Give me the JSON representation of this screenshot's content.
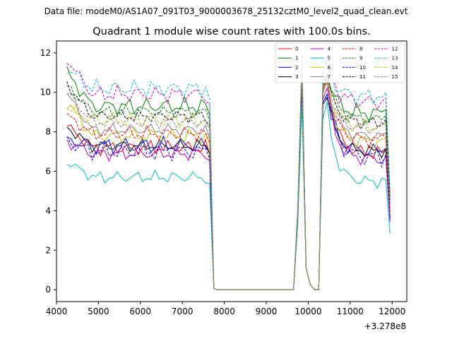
{
  "figure": {
    "suptitle": "Data file: modeM0/AS1A07_091T03_9000003678_25132cztM0_level2_quad_clean.evt"
  },
  "chart_data": {
    "type": "line",
    "title": "Quadrant 1 module wise count rates with 100.0s bins.",
    "xlabel": "",
    "ylabel": "",
    "offset_label": "+3.278e8",
    "xlim": [
      4000,
      12350
    ],
    "ylim": [
      -0.6,
      12.6
    ],
    "xticks": [
      4000,
      5000,
      6000,
      7000,
      8000,
      9000,
      10000,
      11000,
      12000
    ],
    "yticks": [
      0,
      2,
      4,
      6,
      8,
      10,
      12
    ],
    "xtick_labels": [
      "4000",
      "5000",
      "6000",
      "7000",
      "8000",
      "9000",
      "10000",
      "11000",
      "12000"
    ],
    "ytick_labels": [
      "0",
      "2",
      "4",
      "6",
      "8",
      "10",
      "12"
    ],
    "legend_position": "top-right",
    "x": [
      4250,
      4350,
      4450,
      4550,
      4650,
      4750,
      4850,
      4950,
      5050,
      5150,
      5250,
      5350,
      5450,
      5550,
      5650,
      5750,
      5850,
      5950,
      6050,
      6150,
      6250,
      6350,
      6450,
      6550,
      6650,
      6750,
      6850,
      6950,
      7050,
      7150,
      7250,
      7350,
      7450,
      7550,
      7650,
      7750,
      7850,
      7950,
      8050,
      8150,
      8250,
      8350,
      8450,
      8550,
      8650,
      8750,
      8850,
      8950,
      9050,
      9150,
      9250,
      9350,
      9450,
      9550,
      9650,
      9750,
      9850,
      9950,
      10050,
      10150,
      10250,
      10350,
      10450,
      10550,
      10650,
      10750,
      10850,
      10950,
      11050,
      11150,
      11250,
      11350,
      11450,
      11550,
      11650,
      11750,
      11850,
      11950
    ],
    "series": [
      {
        "name": "0",
        "color": "#ff0000",
        "dash": "solid",
        "base": 7.2,
        "start": 8.3,
        "peak": 11.1,
        "amp": 0.35
      },
      {
        "name": "1",
        "color": "#008000",
        "dash": "solid",
        "base": 9.3,
        "start": 11.0,
        "peak": 11.5,
        "amp": 0.4
      },
      {
        "name": "2",
        "color": "#0000ff",
        "dash": "solid",
        "base": 7.3,
        "start": 7.6,
        "peak": 10.3,
        "amp": 0.4
      },
      {
        "name": "3",
        "color": "#000000",
        "dash": "solid",
        "base": 7.3,
        "start": 8.2,
        "peak": 10.2,
        "amp": 0.3
      },
      {
        "name": "4",
        "color": "#bf00bf",
        "dash": "solid",
        "base": 6.9,
        "start": 7.5,
        "peak": 10.5,
        "amp": 0.35
      },
      {
        "name": "5",
        "color": "#00bfbf",
        "dash": "solid",
        "base": 5.7,
        "start": 6.5,
        "peak": 9.4,
        "amp": 0.3
      },
      {
        "name": "6",
        "color": "#bfbf00",
        "dash": "solid",
        "base": 7.8,
        "start": 9.5,
        "peak": 10.8,
        "amp": 0.35
      },
      {
        "name": "7",
        "color": "#808080",
        "dash": "solid",
        "base": 8.1,
        "start": 9.9,
        "peak": 10.9,
        "amp": 0.3
      },
      {
        "name": "8",
        "color": "#ff0000",
        "dash": "dashed",
        "base": 7.9,
        "start": 8.8,
        "peak": 11.0,
        "amp": 0.35
      },
      {
        "name": "9",
        "color": "#008000",
        "dash": "dashed",
        "base": 9.0,
        "start": 10.3,
        "peak": 11.3,
        "amp": 0.3
      },
      {
        "name": "10",
        "color": "#0000ff",
        "dash": "dashed",
        "base": 7.0,
        "start": 7.5,
        "peak": 10.5,
        "amp": 0.45
      },
      {
        "name": "11",
        "color": "#000000",
        "dash": "dashed",
        "base": 8.8,
        "start": 10.4,
        "peak": 11.2,
        "amp": 0.3
      },
      {
        "name": "12",
        "color": "#bf00bf",
        "dash": "dashed",
        "base": 9.9,
        "start": 11.7,
        "peak": 11.9,
        "amp": 0.4
      },
      {
        "name": "13",
        "color": "#00bfbf",
        "dash": "dashed",
        "base": 10.2,
        "start": 11.2,
        "peak": 11.8,
        "amp": 0.4
      },
      {
        "name": "14",
        "color": "#bfbf00",
        "dash": "dashed",
        "base": 8.6,
        "start": 9.2,
        "peak": 11.2,
        "amp": 0.35
      },
      {
        "name": "15",
        "color": "#808080",
        "dash": "dashed",
        "base": 8.5,
        "start": 10.0,
        "peak": 11.0,
        "amp": 0.3
      }
    ]
  }
}
